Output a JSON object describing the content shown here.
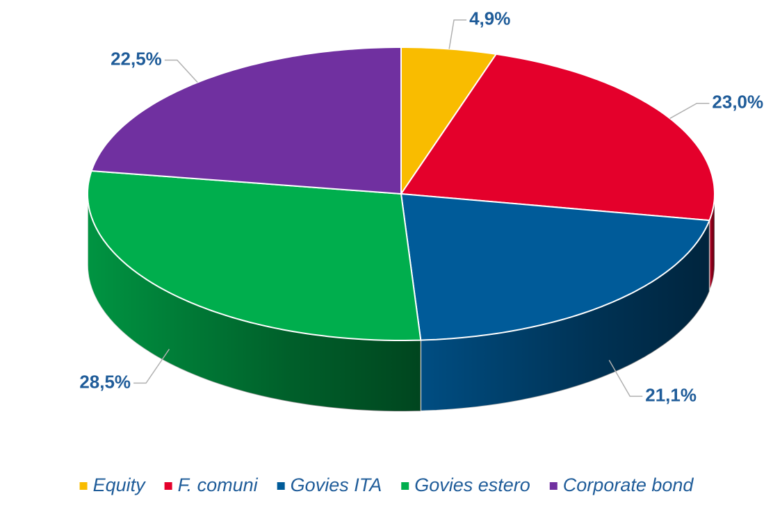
{
  "chart_data": {
    "type": "pie",
    "categories": [
      "Equity",
      "F. comuni",
      "Govies ITA",
      "Govies estero",
      "Corporate bond"
    ],
    "values": [
      4.9,
      23.0,
      21.1,
      28.5,
      22.5
    ],
    "value_labels": [
      "4,9%",
      "23,0%",
      "21,1%",
      "28,5%",
      "22,5%"
    ],
    "colors": [
      "#f9bc00",
      "#e4002b",
      "#005b99",
      "#00ae4d",
      "#7030a0"
    ],
    "legend": "bottom"
  }
}
